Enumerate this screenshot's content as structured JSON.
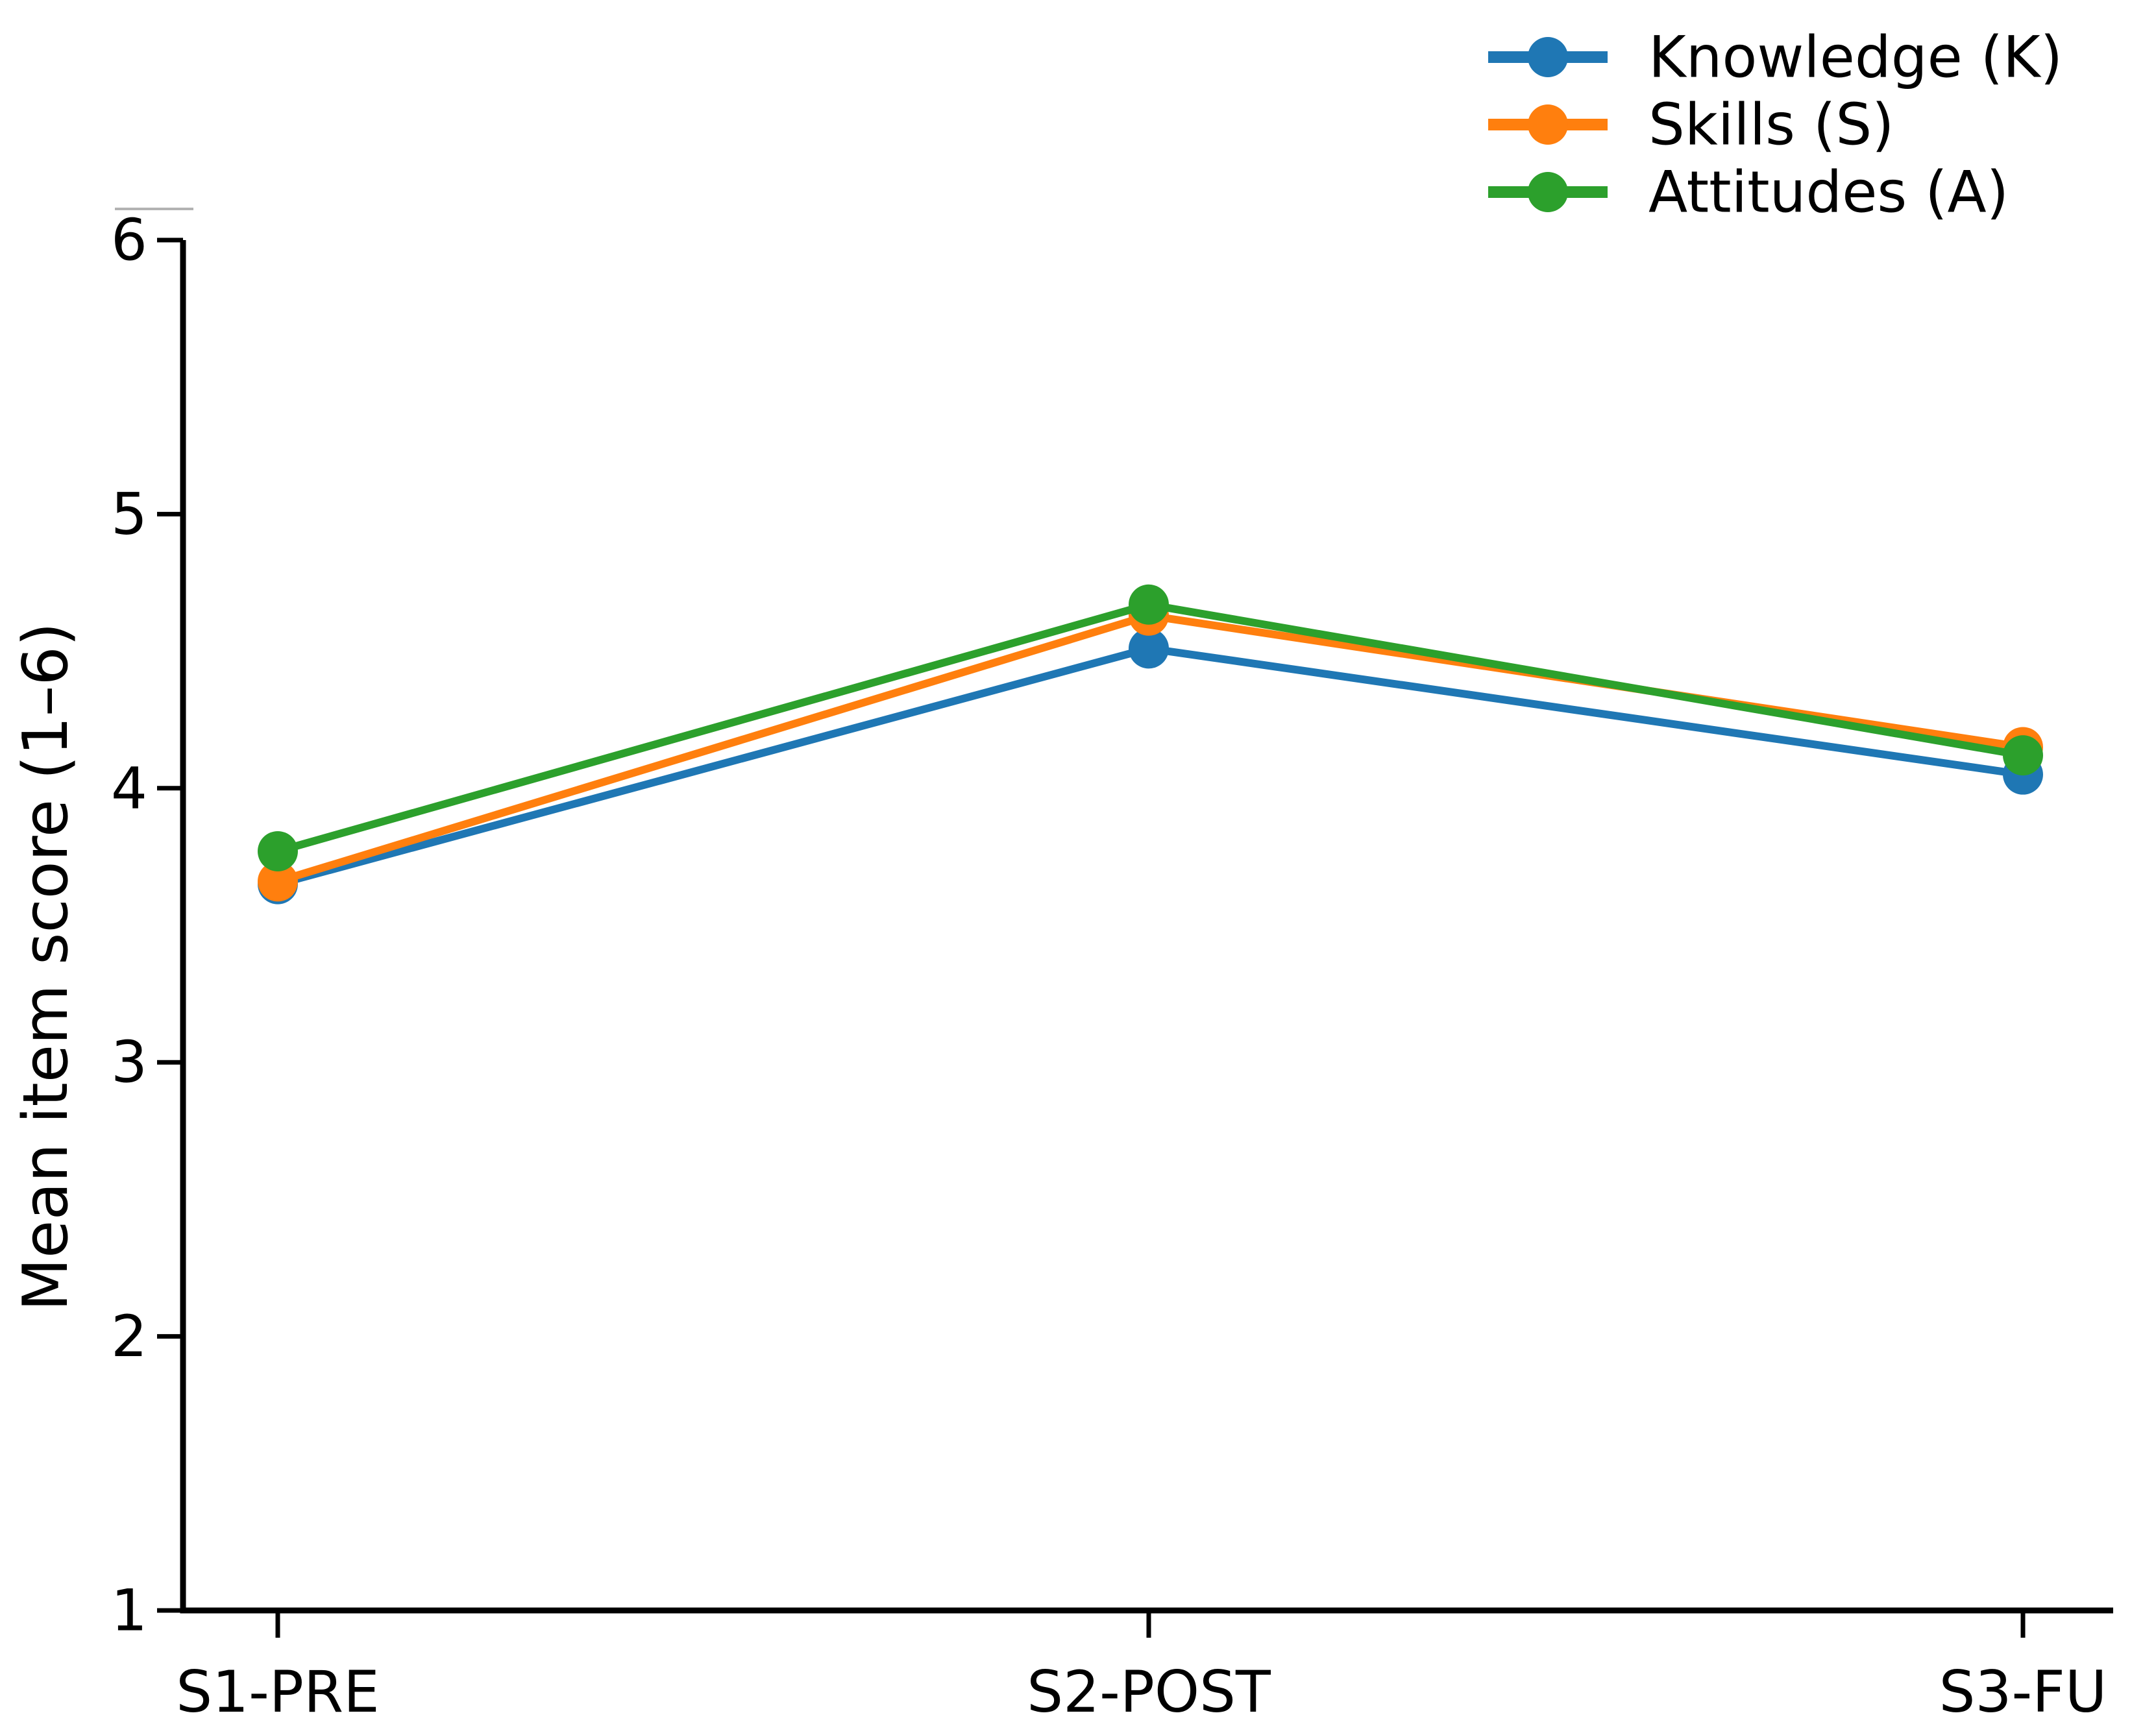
{
  "chart_data": {
    "type": "line",
    "title": "",
    "categories": [
      "S1-PRE",
      "S2-POST",
      "S3-FU"
    ],
    "series": [
      {
        "name": "Knowledge (K)",
        "values": [
          3.65,
          4.51,
          4.05
        ],
        "color": "#1f77b4"
      },
      {
        "name": "Skills (S)",
        "values": [
          3.66,
          4.63,
          4.15
        ],
        "color": "#ff7f0e"
      },
      {
        "name": "Attitudes (A)",
        "values": [
          3.77,
          4.67,
          4.12
        ],
        "color": "#2ca02c"
      }
    ],
    "xlabel": "",
    "ylabel": "Mean item score (1–6)",
    "ylim": [
      1,
      6
    ],
    "yticks": [
      1,
      2,
      3,
      4,
      5,
      6
    ],
    "ytick_labels": [
      "1",
      "2",
      "3",
      "4",
      "5",
      "6"
    ],
    "grid": false,
    "legend_position": "top-right",
    "legend": [
      "Knowledge (K)",
      "Skills (S)",
      "Attitudes (A)"
    ],
    "axis_color": "#000000",
    "background_color": "#ffffff"
  }
}
